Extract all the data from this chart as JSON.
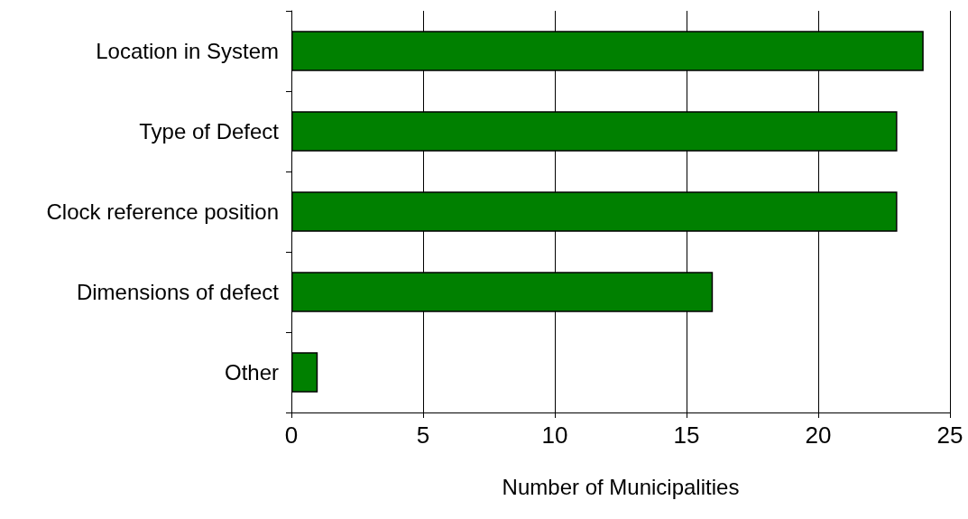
{
  "chart_data": {
    "type": "bar",
    "orientation": "horizontal",
    "xlabel": "Number of Municipalities",
    "categories": [
      "Location in System",
      "Type of Defect",
      "Clock reference position",
      "Dimensions of defect",
      "Other"
    ],
    "values": [
      24,
      23,
      23,
      16,
      1
    ],
    "color": "#008000",
    "xlim": [
      0,
      25
    ],
    "xticks": [
      0,
      5,
      10,
      15,
      20,
      25
    ],
    "grid": "x"
  }
}
